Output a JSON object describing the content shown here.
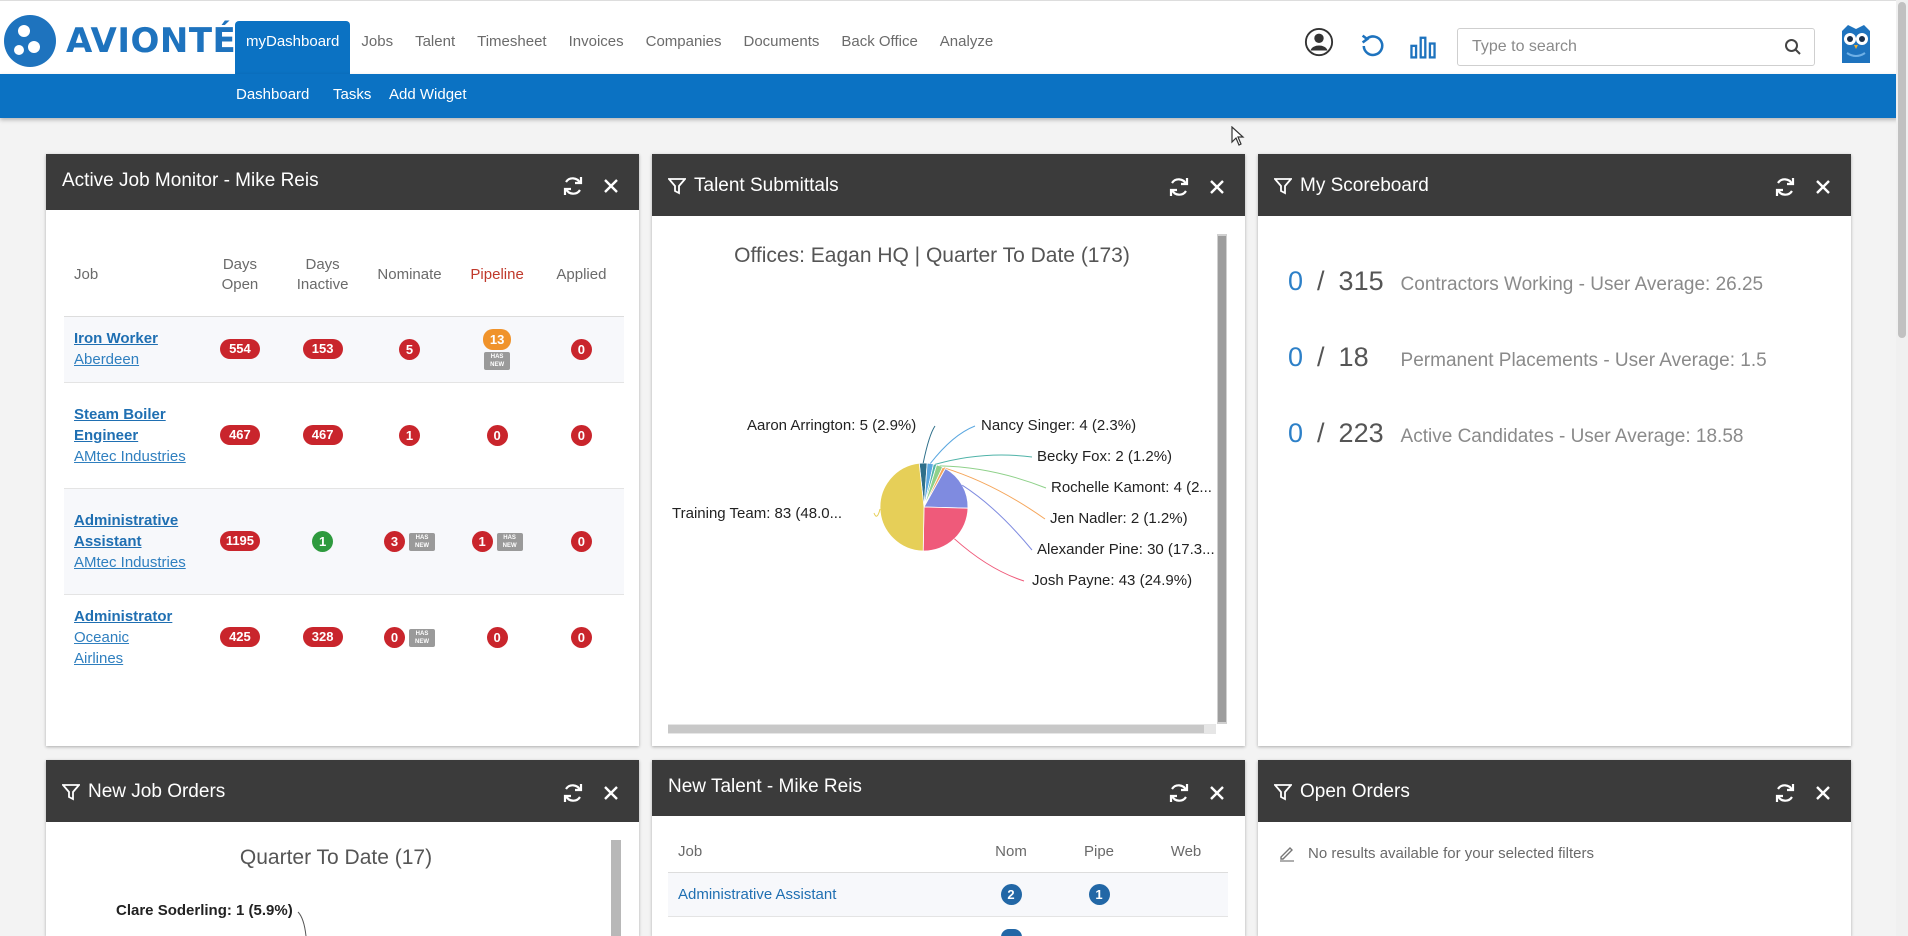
{
  "brand": {
    "name": "AVIONTÉ",
    "color": "#1e73be"
  },
  "nav": {
    "items": [
      "myDashboard",
      "Jobs",
      "Talent",
      "Timesheet",
      "Invoices",
      "Companies",
      "Documents",
      "Back Office",
      "Analyze"
    ],
    "active": "myDashboard",
    "sub_items": [
      "Dashboard",
      "Tasks",
      "Add Widget"
    ]
  },
  "toolbar": {
    "icons": [
      "user-circle-icon",
      "history-icon",
      "bar-chart-icon"
    ]
  },
  "search": {
    "placeholder": "Type to search",
    "value": ""
  },
  "widgets": {
    "job_monitor": {
      "title": "Active Job Monitor - Mike Reis",
      "columns": [
        "Job",
        "Days Open",
        "Days Inactive",
        "Nominate",
        "Pipeline",
        "Applied"
      ],
      "rows": [
        {
          "title": "Iron Worker",
          "company": "Aberdeen",
          "days_open": "554",
          "days_inactive": "153",
          "nominate": "5",
          "nominate_new": false,
          "pipeline": "13",
          "pipeline_new": true,
          "applied": "0"
        },
        {
          "title": "Steam Boiler Engineer",
          "company": "AMtec Industries",
          "days_open": "467",
          "days_inactive": "467",
          "nominate": "1",
          "nominate_new": false,
          "pipeline": "0",
          "pipeline_new": false,
          "applied": "0"
        },
        {
          "title": "Administrative Assistant",
          "company": "AMtec Industries",
          "days_open": "1195",
          "days_inactive": "1",
          "nominate": "3",
          "nominate_new": true,
          "pipeline": "1",
          "pipeline_new": true,
          "applied": "0"
        },
        {
          "title": "Administrator",
          "company": "Oceanic Airlines",
          "days_open": "425",
          "days_inactive": "328",
          "nominate": "0",
          "nominate_new": true,
          "pipeline": "0",
          "pipeline_new": false,
          "applied": "0"
        }
      ],
      "has_new_label": "HAS NEW"
    },
    "talent_submittals": {
      "title": "Talent Submittals",
      "chart_data": {
        "type": "pie",
        "title": "Offices: Eagan HQ | Quarter To Date (173)",
        "slices": [
          {
            "name": "Training Team",
            "value": 83,
            "label": "Training Team: 83 (48.0...",
            "color": "#e6cf58"
          },
          {
            "name": "Josh Payne",
            "value": 43,
            "label": "Josh Payne: 43 (24.9%)",
            "color": "#ef5a7a"
          },
          {
            "name": "Alexander Pine",
            "value": 30,
            "label": "Alexander Pine: 30 (17.3...",
            "color": "#7f8be0"
          },
          {
            "name": "Jen Nadler",
            "value": 2,
            "label": "Jen Nadler: 2 (1.2%)",
            "color": "#f5a65b"
          },
          {
            "name": "Rochelle Kamont",
            "value": 4,
            "label": "Rochelle Kamont: 4 (2...",
            "color": "#8fd18a"
          },
          {
            "name": "Becky Fox",
            "value": 2,
            "label": "Becky Fox: 2 (1.2%)",
            "color": "#4fb3a8"
          },
          {
            "name": "Nancy Singer",
            "value": 4,
            "label": "Nancy Singer: 4 (2.3%)",
            "color": "#5aa7e0"
          },
          {
            "name": "Aaron Arrington",
            "value": 5,
            "label": "Aaron Arrington: 5 (2.9%)",
            "color": "#2e6f8a"
          }
        ]
      }
    },
    "scoreboard": {
      "title": "My Scoreboard",
      "rows": [
        {
          "value": "0",
          "goal": "315",
          "label": "Contractors Working - User Average: 26.25"
        },
        {
          "value": "0",
          "goal": "18",
          "label": "Permanent Placements - User Average: 1.5"
        },
        {
          "value": "0",
          "goal": "223",
          "label": "Active Candidates - User Average: 18.58"
        }
      ]
    },
    "new_job_orders": {
      "title": "New Job Orders",
      "chart_title": "Quarter To Date (17)",
      "first_label": "Clare Soderling: 1 (5.9%)"
    },
    "new_talent": {
      "title": "New Talent - Mike Reis",
      "columns": [
        "Job",
        "Nom",
        "Pipe",
        "Web"
      ],
      "rows": [
        {
          "job": "Administrative Assistant",
          "nom": "2",
          "pipe": "1",
          "web": ""
        }
      ]
    },
    "open_orders": {
      "title": "Open Orders",
      "empty_message": "No results available for your selected filters"
    }
  }
}
